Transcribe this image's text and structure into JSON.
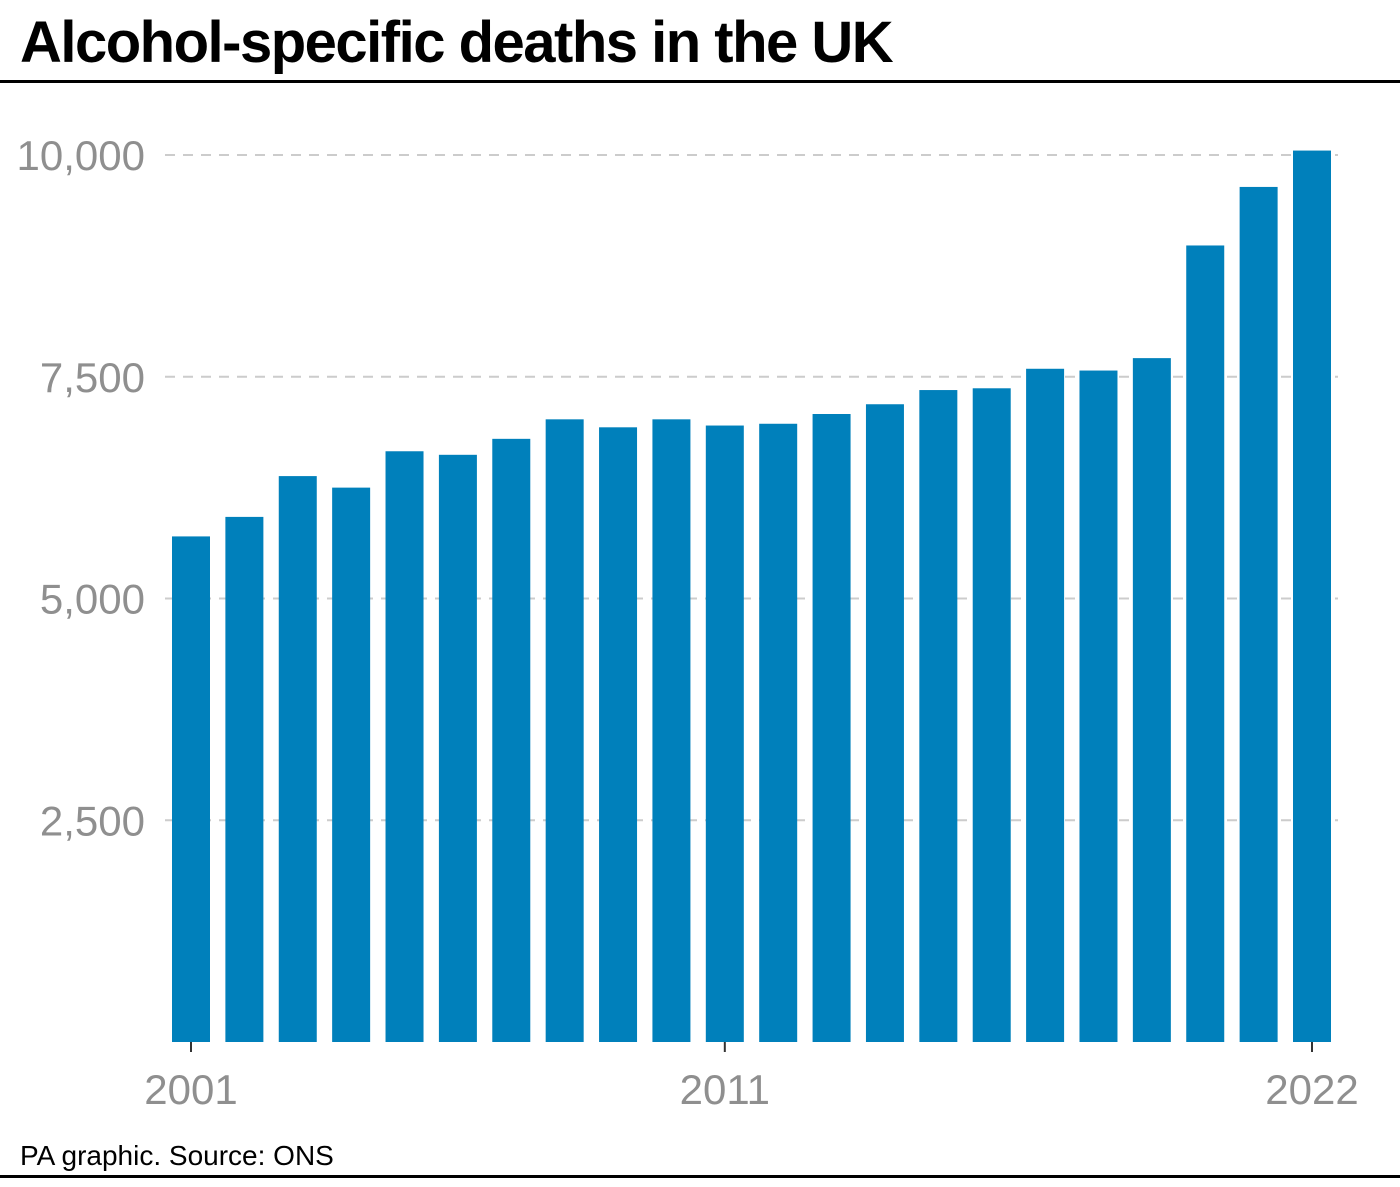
{
  "title": "Alcohol-specific deaths in the UK",
  "source": "PA graphic. Source: ONS",
  "colors": {
    "bar": "#0080bb",
    "grid": "#cccccc",
    "tick_text": "#8f8f8f",
    "rule": "#000000"
  },
  "chart_data": {
    "type": "bar",
    "title": "Alcohol-specific deaths in the UK",
    "xlabel": "",
    "ylabel": "",
    "categories": [
      "2001",
      "2002",
      "2003",
      "2004",
      "2005",
      "2006",
      "2007",
      "2008",
      "2009",
      "2010",
      "2011",
      "2012",
      "2013",
      "2014",
      "2015",
      "2016",
      "2017",
      "2018",
      "2019",
      "2020",
      "2021",
      "2022"
    ],
    "values": [
      5700,
      5920,
      6380,
      6250,
      6660,
      6620,
      6800,
      7020,
      6930,
      7020,
      6950,
      6970,
      7080,
      7190,
      7350,
      7370,
      7590,
      7570,
      7710,
      8980,
      9640,
      10050
    ],
    "ylim": [
      0,
      10000
    ],
    "yticks": [
      2500,
      5000,
      7500,
      10000
    ],
    "ytick_labels": [
      "2,500",
      "5,000",
      "7,500",
      "10,000"
    ],
    "xticks_labeled": [
      "2001",
      "2011",
      "2022"
    ],
    "grid": "horizontal-dashed",
    "legend": "none"
  }
}
